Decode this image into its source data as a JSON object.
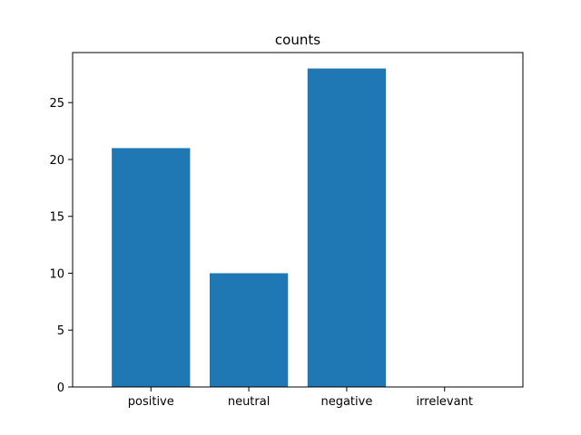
{
  "chart_data": {
    "type": "bar",
    "title": "counts",
    "xlabel": "",
    "ylabel": "",
    "categories": [
      "positive",
      "neutral",
      "negative",
      "irrelevant"
    ],
    "values": [
      21,
      10,
      28,
      0
    ],
    "ylim": [
      0,
      29.4
    ],
    "yticks": [
      0,
      5,
      10,
      15,
      20,
      25
    ],
    "bar_color": "#1f77b4",
    "grid": false,
    "legend": "none"
  }
}
